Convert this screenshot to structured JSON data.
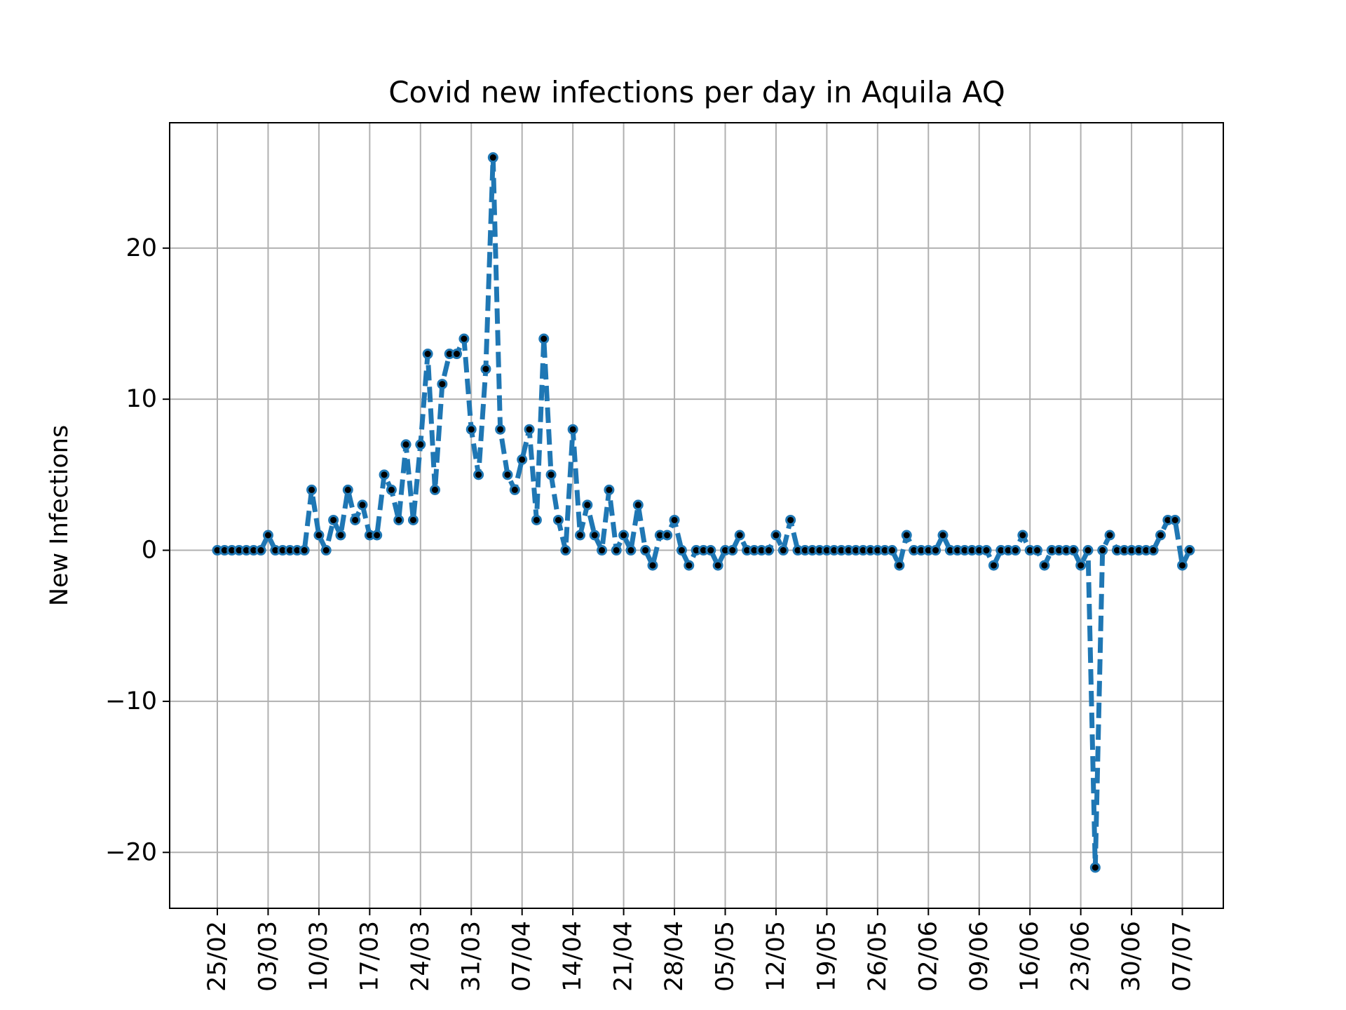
{
  "chart_data": {
    "type": "line",
    "title": "Covid new infections per day in Aquila AQ",
    "xlabel": "",
    "ylabel": "New Infections",
    "x_start": "2020-02-25",
    "x_tick_labels": [
      "25/02",
      "03/03",
      "10/03",
      "17/03",
      "24/03",
      "31/03",
      "07/04",
      "14/04",
      "21/04",
      "28/04",
      "05/05",
      "12/05",
      "19/05",
      "26/05",
      "02/06",
      "09/06",
      "16/06",
      "23/06",
      "30/06",
      "07/07"
    ],
    "y_ticks": [
      -20,
      -10,
      0,
      10,
      20
    ],
    "y_tick_labels": [
      "−20",
      "−10",
      "0",
      "10",
      "20"
    ],
    "ylim": [
      -23.7,
      28.3
    ],
    "grid": true,
    "line_style": "dashed",
    "line_color": "#1f77b4",
    "marker_color": "#000000",
    "series": [
      {
        "values": [
          0,
          0,
          0,
          0,
          0,
          0,
          0,
          1,
          0,
          0,
          0,
          0,
          0,
          4,
          1,
          0,
          2,
          1,
          4,
          2,
          3,
          1,
          1,
          5,
          4,
          2,
          7,
          2,
          7,
          13,
          4,
          11,
          13,
          13,
          14,
          8,
          5,
          12,
          26,
          8,
          5,
          4,
          6,
          8,
          2,
          14,
          5,
          2,
          0,
          8,
          1,
          3,
          1,
          0,
          4,
          0,
          1,
          0,
          3,
          0,
          -1,
          1,
          1,
          2,
          0,
          -1,
          0,
          0,
          0,
          -1,
          0,
          0,
          1,
          0,
          0,
          0,
          0,
          1,
          0,
          2,
          0,
          0,
          0,
          0,
          0,
          0,
          0,
          0,
          0,
          0,
          0,
          0,
          0,
          0,
          -1,
          1,
          0,
          0,
          0,
          0,
          1,
          0,
          0,
          0,
          0,
          0,
          0,
          -1,
          0,
          0,
          0,
          1,
          0,
          0,
          -1,
          0,
          0,
          0,
          0,
          -1,
          0,
          -21,
          0,
          1,
          0,
          0,
          0,
          0,
          0,
          0,
          1,
          2,
          2,
          -1,
          0
        ]
      }
    ]
  }
}
